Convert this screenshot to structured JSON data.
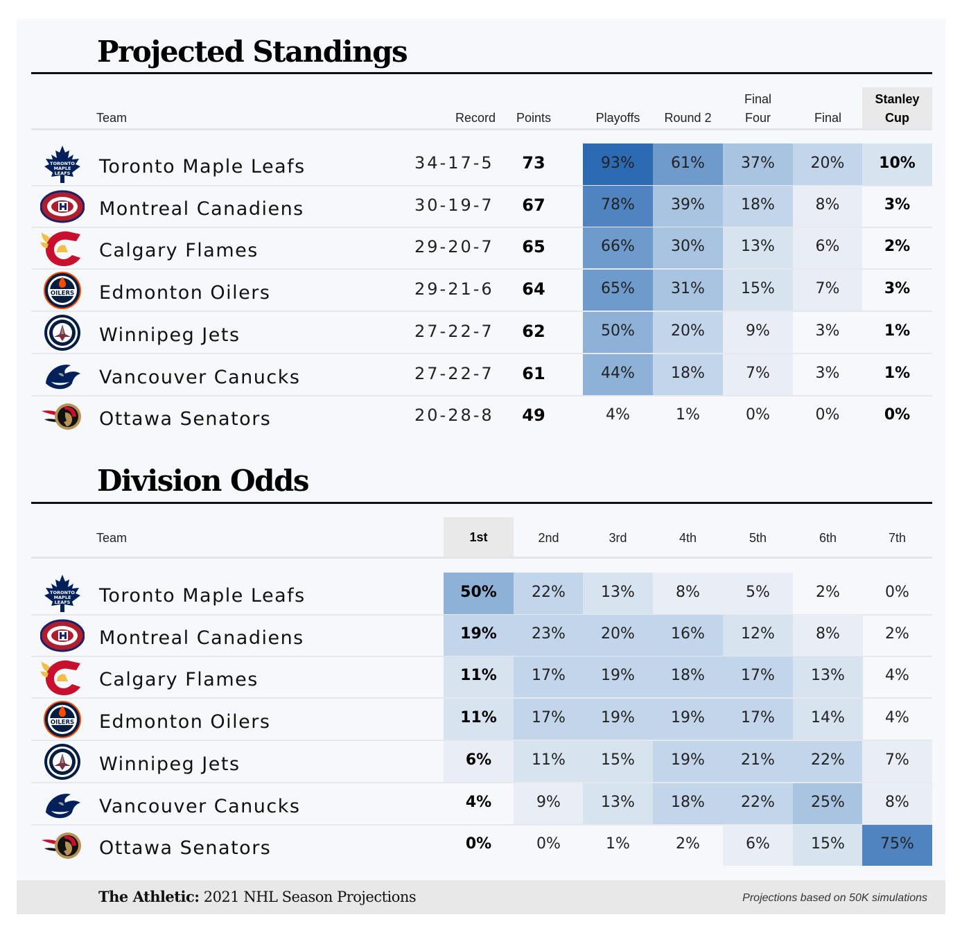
{
  "colors": {
    "scale": [
      "#f7f8fb",
      "#e9eef6",
      "#d8e3f0",
      "#c3d5ea",
      "#a9c4e1",
      "#8db1d7",
      "#6e9acc",
      "#4f84c0",
      "#2c6bb3"
    ],
    "shade_header": "#e9e9ea"
  },
  "standings": {
    "title": "Projected Standings",
    "columns": [
      {
        "key": "team",
        "label": "Team"
      },
      {
        "key": "record",
        "label": "Record"
      },
      {
        "key": "points",
        "label": "Points"
      },
      {
        "key": "playoffs",
        "label": "Playoffs"
      },
      {
        "key": "round2",
        "label": "Round 2"
      },
      {
        "key": "final_four",
        "label": "Final\nFour"
      },
      {
        "key": "final",
        "label": "Final"
      },
      {
        "key": "stanley_cup",
        "label": "Stanley\nCup"
      }
    ]
  },
  "division": {
    "title": "Division Odds",
    "columns": [
      "Team",
      "1st",
      "2nd",
      "3rd",
      "4th",
      "5th",
      "6th",
      "7th"
    ]
  },
  "footer": {
    "brand": "The Athletic:",
    "subtitle": "2021 NHL Season Projections",
    "note": "Projections based on 50K simulations"
  },
  "chart_data": [
    {
      "type": "table",
      "title": "Projected Standings",
      "columns": [
        "Team",
        "Record",
        "Points",
        "Playoffs",
        "Round 2",
        "Final Four",
        "Final",
        "Stanley Cup"
      ],
      "rows": [
        {
          "team": "Toronto Maple Leafs",
          "logo": "maple-leaf-icon",
          "record": "34-17-5",
          "points": 73,
          "values": [
            93,
            61,
            37,
            20,
            10
          ],
          "labels": [
            "93%",
            "61%",
            "37%",
            "20%",
            "10%"
          ]
        },
        {
          "team": "Montreal Canadiens",
          "logo": "canadiens-ch-icon",
          "record": "30-19-7",
          "points": 67,
          "values": [
            78,
            39,
            18,
            8,
            3
          ],
          "labels": [
            "78%",
            "39%",
            "18%",
            "8%",
            "3%"
          ]
        },
        {
          "team": "Calgary Flames",
          "logo": "flaming-c-icon",
          "record": "29-20-7",
          "points": 65,
          "values": [
            66,
            30,
            13,
            6,
            2
          ],
          "labels": [
            "66%",
            "30%",
            "13%",
            "6%",
            "2%"
          ]
        },
        {
          "team": "Edmonton Oilers",
          "logo": "oil-drop-icon",
          "record": "29-21-6",
          "points": 64,
          "values": [
            65,
            31,
            15,
            7,
            3
          ],
          "labels": [
            "65%",
            "31%",
            "15%",
            "7%",
            "3%"
          ]
        },
        {
          "team": "Winnipeg Jets",
          "logo": "jet-icon",
          "record": "27-22-7",
          "points": 62,
          "values": [
            50,
            20,
            9,
            3,
            1
          ],
          "labels": [
            "50%",
            "20%",
            "9%",
            "3%",
            "1%"
          ]
        },
        {
          "team": "Vancouver Canucks",
          "logo": "orca-icon",
          "record": "27-22-7",
          "points": 61,
          "values": [
            44,
            18,
            7,
            3,
            1
          ],
          "labels": [
            "44%",
            "18%",
            "7%",
            "3%",
            "1%"
          ]
        },
        {
          "team": "Ottawa Senators",
          "logo": "centurion-icon",
          "record": "20-28-8",
          "points": 49,
          "values": [
            4,
            1,
            0,
            0,
            0
          ],
          "labels": [
            "4%",
            "1%",
            "0%",
            "0%",
            "0%"
          ]
        }
      ]
    },
    {
      "type": "table",
      "title": "Division Odds",
      "columns": [
        "Team",
        "1st",
        "2nd",
        "3rd",
        "4th",
        "5th",
        "6th",
        "7th"
      ],
      "rows": [
        {
          "team": "Toronto Maple Leafs",
          "logo": "maple-leaf-icon",
          "values": [
            50,
            22,
            13,
            8,
            5,
            2,
            0
          ],
          "labels": [
            "50%",
            "22%",
            "13%",
            "8%",
            "5%",
            "2%",
            "0%"
          ]
        },
        {
          "team": "Montreal Canadiens",
          "logo": "canadiens-ch-icon",
          "values": [
            19,
            23,
            20,
            16,
            12,
            8,
            2
          ],
          "labels": [
            "19%",
            "23%",
            "20%",
            "16%",
            "12%",
            "8%",
            "2%"
          ]
        },
        {
          "team": "Calgary Flames",
          "logo": "flaming-c-icon",
          "values": [
            11,
            17,
            19,
            18,
            17,
            13,
            4
          ],
          "labels": [
            "11%",
            "17%",
            "19%",
            "18%",
            "17%",
            "13%",
            "4%"
          ]
        },
        {
          "team": "Edmonton Oilers",
          "logo": "oil-drop-icon",
          "values": [
            11,
            17,
            19,
            19,
            17,
            14,
            4
          ],
          "labels": [
            "11%",
            "17%",
            "19%",
            "19%",
            "17%",
            "14%",
            "4%"
          ]
        },
        {
          "team": "Winnipeg Jets",
          "logo": "jet-icon",
          "values": [
            6,
            11,
            15,
            19,
            21,
            22,
            7
          ],
          "labels": [
            "6%",
            "11%",
            "15%",
            "19%",
            "21%",
            "22%",
            "7%"
          ]
        },
        {
          "team": "Vancouver Canucks",
          "logo": "orca-icon",
          "values": [
            4,
            9,
            13,
            18,
            22,
            25,
            8
          ],
          "labels": [
            "4%",
            "9%",
            "13%",
            "18%",
            "22%",
            "25%",
            "8%"
          ]
        },
        {
          "team": "Ottawa Senators",
          "logo": "centurion-icon",
          "values": [
            0,
            0,
            1,
            2,
            6,
            15,
            75
          ],
          "labels": [
            "0%",
            "0%",
            "1%",
            "2%",
            "6%",
            "15%",
            "75%"
          ]
        }
      ]
    }
  ]
}
